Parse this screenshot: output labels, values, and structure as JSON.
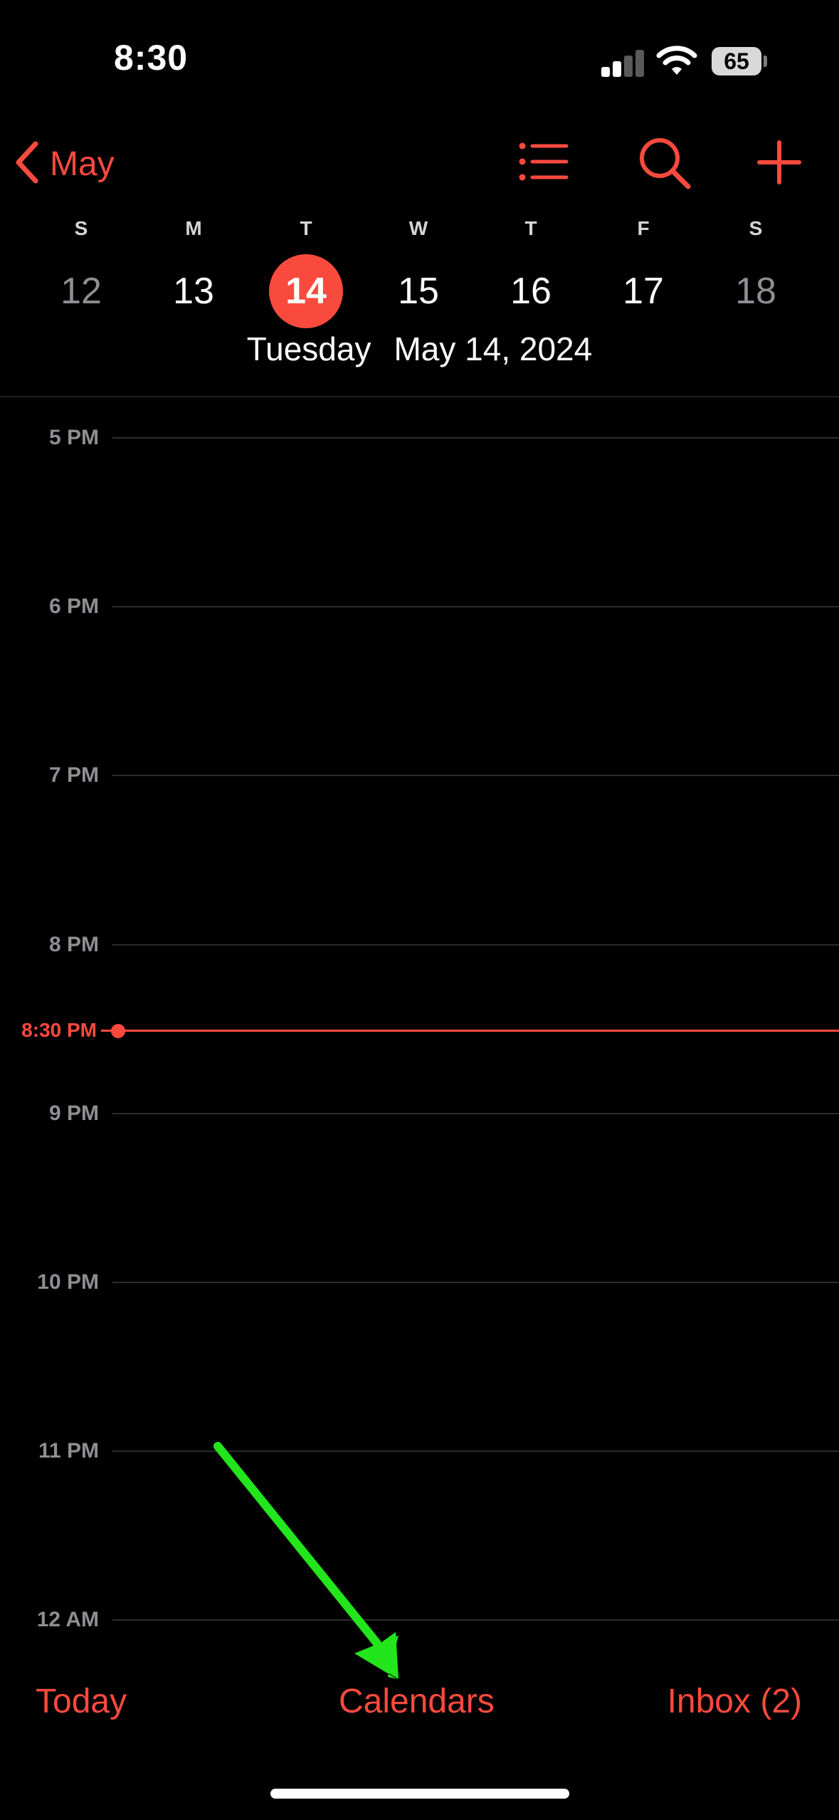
{
  "status_bar": {
    "time": "8:30",
    "battery": "65",
    "signal_icon": "cellular-signal-icon",
    "wifi_icon": "wifi-icon",
    "battery_icon": "battery-icon"
  },
  "nav": {
    "back_label": "May",
    "back_icon": "chevron-left-icon",
    "list_icon": "list-icon",
    "search_icon": "search-icon",
    "add_icon": "plus-icon"
  },
  "week": {
    "days": [
      {
        "letter": "S",
        "number": "12",
        "weekend": true
      },
      {
        "letter": "M",
        "number": "13",
        "weekend": false
      },
      {
        "letter": "T",
        "number": "14",
        "weekend": false,
        "selected": true
      },
      {
        "letter": "W",
        "number": "15",
        "weekend": false
      },
      {
        "letter": "T",
        "number": "16",
        "weekend": false
      },
      {
        "letter": "F",
        "number": "17",
        "weekend": false
      },
      {
        "letter": "S",
        "number": "18",
        "weekend": true
      }
    ],
    "selected_weekday": "Tuesday",
    "selected_date": "May 14, 2024"
  },
  "timeline": {
    "hours": [
      "5 PM",
      "6 PM",
      "7 PM",
      "8 PM",
      "9 PM",
      "10 PM",
      "11 PM",
      "12 AM"
    ],
    "now_label": "8:30 PM"
  },
  "toolbar": {
    "today": "Today",
    "calendars": "Calendars",
    "inbox": "Inbox (2)"
  },
  "colors": {
    "accent": "#fa4a3e",
    "background": "#000000",
    "annotation_arrow": "#22e51b"
  }
}
